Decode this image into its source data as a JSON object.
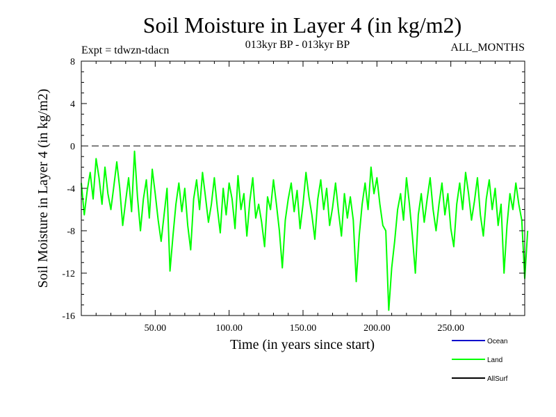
{
  "chart_data": {
    "type": "line",
    "title": "Soil Moisture in Layer 4 (in kg/m2)",
    "subtitle_left": "Expt = tdwzn-tdacn",
    "subtitle_center": "013kyr BP - 013kyr BP",
    "subtitle_right": "ALL_MONTHS",
    "xlabel": "Time (in years since start)",
    "ylabel": "Soil Moisture in Layer 4 (in kg/m2)",
    "xlim": [
      0,
      300
    ],
    "ylim": [
      -16,
      8
    ],
    "x_ticks": [
      50,
      100,
      150,
      200,
      250
    ],
    "x_tick_labels": [
      "50.00",
      "100.00",
      "150.00",
      "200.00",
      "250.00"
    ],
    "y_ticks": [
      8,
      4,
      0,
      -4,
      -8,
      -12,
      -16
    ],
    "y_tick_labels": [
      "8",
      "4",
      "0",
      "-4",
      "-8",
      "-12",
      "-16"
    ],
    "reference_line": 0,
    "series": [
      {
        "name": "Land",
        "color": "#00ff00",
        "x_start": 0.0,
        "x_step": 2.0,
        "values": [
          -3.5,
          -6.5,
          -4.2,
          -2.5,
          -5.0,
          -1.2,
          -3.0,
          -5.5,
          -2.0,
          -4.5,
          -6.0,
          -3.8,
          -1.5,
          -4.0,
          -7.5,
          -5.2,
          -3.0,
          -6.2,
          -0.5,
          -4.8,
          -8.0,
          -5.0,
          -3.2,
          -6.8,
          -2.2,
          -4.5,
          -7.0,
          -9.0,
          -6.5,
          -4.0,
          -11.8,
          -8.5,
          -5.5,
          -3.5,
          -6.2,
          -4.0,
          -7.5,
          -9.8,
          -5.0,
          -3.2,
          -6.0,
          -2.5,
          -4.8,
          -7.2,
          -5.5,
          -3.0,
          -5.8,
          -8.2,
          -4.0,
          -6.5,
          -3.5,
          -5.0,
          -7.8,
          -2.8,
          -6.0,
          -4.5,
          -8.5,
          -5.2,
          -3.0,
          -6.8,
          -5.5,
          -7.2,
          -9.5,
          -4.8,
          -6.0,
          -3.2,
          -5.5,
          -8.0,
          -11.5,
          -7.0,
          -5.0,
          -3.5,
          -6.2,
          -4.2,
          -7.8,
          -5.5,
          -2.5,
          -4.8,
          -6.5,
          -8.8,
          -5.0,
          -3.2,
          -6.0,
          -4.0,
          -7.5,
          -5.8,
          -3.5,
          -6.2,
          -8.5,
          -4.5,
          -6.8,
          -4.8,
          -7.0,
          -12.8,
          -8.5,
          -5.5,
          -3.5,
          -6.0,
          -2.0,
          -4.5,
          -3.0,
          -5.5,
          -7.5,
          -8.0,
          -15.5,
          -11.5,
          -9.0,
          -6.0,
          -4.5,
          -7.0,
          -3.0,
          -5.5,
          -8.5,
          -12.0,
          -6.5,
          -4.5,
          -7.2,
          -5.0,
          -3.0,
          -6.0,
          -8.0,
          -5.5,
          -3.5,
          -6.5,
          -4.5,
          -7.8,
          -9.5,
          -5.5,
          -3.5,
          -6.0,
          -2.5,
          -4.5,
          -7.0,
          -5.2,
          -3.0,
          -6.5,
          -8.5,
          -5.0,
          -3.2,
          -6.0,
          -4.0,
          -7.5,
          -5.5,
          -12.0,
          -7.5,
          -4.5,
          -6.0,
          -3.5,
          -5.5,
          -7.0,
          -12.5,
          -8.0
        ]
      }
    ],
    "legend": [
      {
        "name": "Ocean",
        "color": "#0000cc"
      },
      {
        "name": "Land",
        "color": "#00ff00"
      },
      {
        "name": "AllSurf",
        "color": "#000000"
      }
    ],
    "legend_position": "bottom-right",
    "grid": false
  }
}
